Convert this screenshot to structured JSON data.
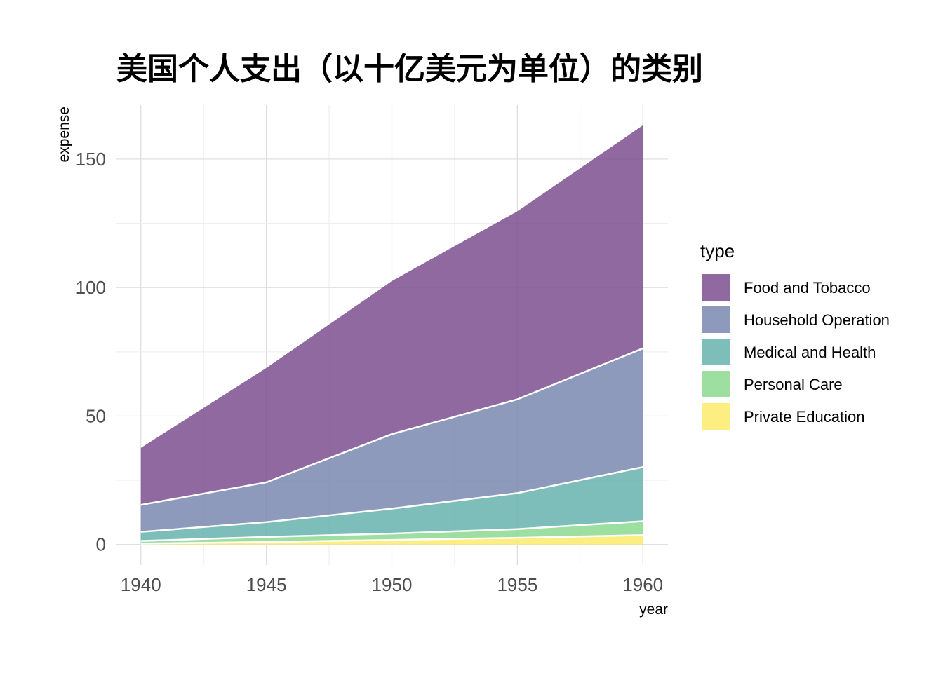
{
  "chart_data": {
    "type": "area",
    "stacked": true,
    "title": "美国个人支出（以十亿美元为单位）的类别",
    "xlabel": "year",
    "ylabel": "expense",
    "x": [
      1940,
      1945,
      1950,
      1955,
      1960
    ],
    "xticks": [
      "1940",
      "1945",
      "1950",
      "1955",
      "1960"
    ],
    "yticks": [
      "0",
      "50",
      "100",
      "150"
    ],
    "xlim": [
      1939,
      1961
    ],
    "ylim": [
      -8,
      171
    ],
    "grid": true,
    "legend_position": "right",
    "legend_title": "type",
    "series": [
      {
        "name": "Food and Tobacco",
        "values": [
          22.2,
          44.5,
          59.6,
          73.2,
          86.8
        ],
        "color": "#7B4F8E"
      },
      {
        "name": "Household Operation",
        "values": [
          10.5,
          15.5,
          29.0,
          36.5,
          46.2
        ],
        "color": "#7988B0"
      },
      {
        "name": "Medical and Health",
        "values": [
          3.53,
          5.76,
          9.71,
          14.0,
          21.1
        ],
        "color": "#67B3AE"
      },
      {
        "name": "Personal Care",
        "values": [
          1.04,
          1.98,
          2.45,
          3.4,
          5.4
        ],
        "color": "#8CD98F"
      },
      {
        "name": "Private Education",
        "values": [
          0.341,
          0.974,
          1.8,
          2.6,
          3.64
        ],
        "color": "#FDEB6C"
      }
    ]
  }
}
